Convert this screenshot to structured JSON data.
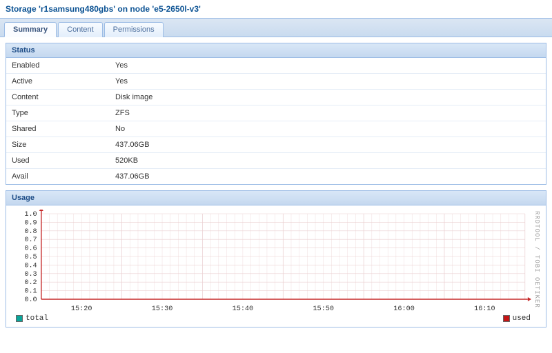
{
  "header": {
    "title": "Storage 'r1samsung480gbs' on node 'e5-2650l-v3'"
  },
  "tabs": [
    {
      "label": "Summary",
      "active": true
    },
    {
      "label": "Content",
      "active": false
    },
    {
      "label": "Permissions",
      "active": false
    }
  ],
  "status_panel": {
    "title": "Status",
    "rows": [
      {
        "key": "Enabled",
        "value": "Yes"
      },
      {
        "key": "Active",
        "value": "Yes"
      },
      {
        "key": "Content",
        "value": "Disk image"
      },
      {
        "key": "Type",
        "value": "ZFS"
      },
      {
        "key": "Shared",
        "value": "No"
      },
      {
        "key": "Size",
        "value": "437.06GB"
      },
      {
        "key": "Used",
        "value": "520KB"
      },
      {
        "key": "Avail",
        "value": "437.06GB"
      }
    ]
  },
  "usage_panel": {
    "title": "Usage",
    "chart": {
      "type": "line",
      "ylim": [
        0.0,
        1.0
      ],
      "ytick_step": 0.1,
      "y_ticks": [
        "0.0",
        "0.1",
        "0.2",
        "0.3",
        "0.4",
        "0.5",
        "0.6",
        "0.7",
        "0.8",
        "0.9",
        "1.0"
      ],
      "x_ticks": [
        "15:20",
        "15:30",
        "15:40",
        "15:50",
        "16:00",
        "16:10"
      ],
      "grid_major_color": "#eacfd0",
      "axis_color": "#c62828",
      "background_color": "#ffffff",
      "tick_font": "Courier New",
      "tick_fontsize": 10,
      "series": [
        {
          "name": "total",
          "color": "#0aa59a",
          "values": []
        },
        {
          "name": "used",
          "color": "#c51616",
          "values": []
        }
      ],
      "watermark": "RRDTOOL / TOBI OETIKER"
    },
    "legend": [
      {
        "label": "total",
        "color": "#0aa59a"
      },
      {
        "label": "used",
        "color": "#c51616"
      }
    ]
  }
}
